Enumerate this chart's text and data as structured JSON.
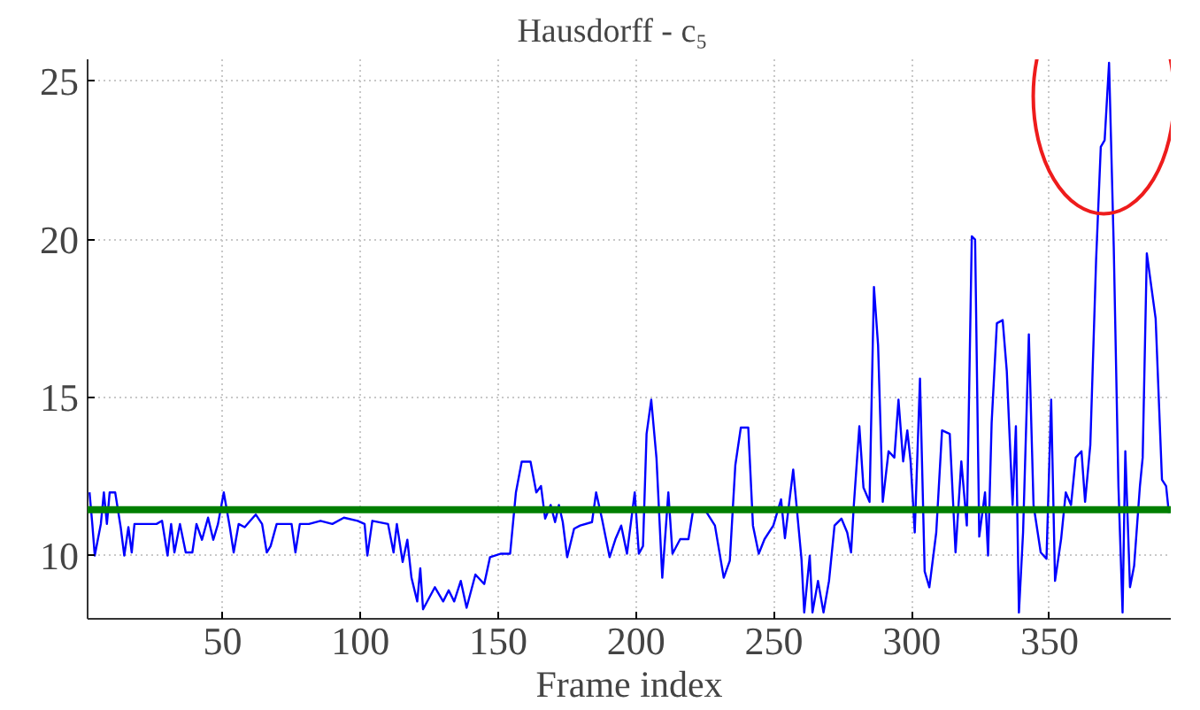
{
  "chart_data": {
    "type": "line",
    "title": "Hausdorff   -   c₅",
    "xlabel": "Frame index",
    "x": [
      1.7,
      2.7,
      3.6,
      5.8,
      6.9,
      8,
      9,
      11,
      13,
      14.3,
      15.8,
      17,
      18,
      26,
      28,
      30,
      31.3,
      32.5,
      34.5,
      36.6,
      39,
      40.5,
      42.5,
      44.7,
      46.6,
      48.3,
      50.4,
      52.6,
      54,
      55.8,
      58,
      60,
      62,
      64.3,
      66,
      67.4,
      69.6,
      75,
      76.4,
      78,
      81.3,
      85.5,
      89.8,
      94,
      99,
      101.5,
      102.5,
      104.3,
      110,
      112,
      113.2,
      115.3,
      117,
      118.5,
      120.6,
      121.7,
      122.7,
      127,
      130,
      132,
      134,
      136.4,
      138.5,
      141.7,
      144.9,
      147,
      151,
      154.3,
      156.4,
      158.5,
      161.7,
      163.8,
      165.5,
      167,
      169,
      170.6,
      172,
      173.4,
      175,
      177.5,
      179.7,
      184,
      185.5,
      187.6,
      190.4,
      192.5,
      194.6,
      196.7,
      199.5,
      201,
      202.5,
      203.8,
      205.5,
      207.4,
      209.5,
      211.7,
      213.2,
      216,
      219,
      220.8,
      225.5,
      228.6,
      231.8,
      234,
      236,
      238,
      240.7,
      242.4,
      244.5,
      246.6,
      249.8,
      252.6,
      254,
      257,
      260,
      261,
      263,
      264,
      266,
      268,
      270,
      272,
      274.5,
      276.6,
      278,
      279,
      281,
      282.5,
      284.7,
      286.3,
      287.8,
      289.5,
      291.6,
      293.7,
      295.2,
      296.9,
      298.4,
      299.6,
      301.1,
      303,
      304.7,
      306.4,
      308.9,
      311,
      313.8,
      315.9,
      318,
      320,
      321.8,
      323,
      324.5,
      326.6,
      327.7,
      329,
      330.9,
      333,
      334.5,
      336.6,
      337.8,
      338.9,
      340.4,
      342.5,
      344.2,
      346.8,
      348.9,
      350.6,
      352,
      354.2,
      355.9,
      357.8,
      359.5,
      361.6,
      362.9,
      364.8,
      366.9,
      368.6,
      370,
      371.6,
      373.3,
      375,
      376.5,
      377.5,
      379.2,
      380.7,
      382.8,
      383.8,
      385.3,
      388.5,
      390.8,
      392.3,
      393.3
    ],
    "series": [
      {
        "color": "#0000ff",
        "values": [
          12,
          11,
          10,
          11,
          12,
          11,
          12,
          12,
          10.9,
          10,
          10.9,
          10.1,
          11,
          11,
          11.1,
          10,
          11,
          10.1,
          11,
          10.1,
          10.1,
          11,
          10.5,
          11.2,
          10.5,
          11,
          12,
          10.9,
          10.1,
          11,
          10.9,
          11.1,
          11.3,
          11,
          10.1,
          10.3,
          11,
          11,
          10.1,
          11,
          11,
          11.1,
          11,
          11.2,
          11.1,
          11,
          10,
          11.1,
          11,
          10.1,
          11,
          9.8,
          10.5,
          9.3,
          8.55,
          9.6,
          8.3,
          9,
          8.55,
          8.9,
          8.55,
          9.2,
          8.35,
          9.4,
          9.1,
          9.95,
          10.06,
          10.06,
          12,
          12.97,
          12.97,
          12,
          12.2,
          11.17,
          11.6,
          11.06,
          11.6,
          11.06,
          9.95,
          10.85,
          10.95,
          11.06,
          12,
          11.17,
          9.95,
          10.52,
          10.95,
          10.06,
          12,
          10.06,
          10.3,
          13.85,
          14.93,
          13.08,
          9.3,
          12,
          10.06,
          10.52,
          10.52,
          11.5,
          11.38,
          10.95,
          9.3,
          9.84,
          12.86,
          14.05,
          14.05,
          10.95,
          10.06,
          10.52,
          10.95,
          11.78,
          10.55,
          12.72,
          9.9,
          8.2,
          10,
          8.2,
          9.2,
          8.2,
          9.2,
          10.95,
          11.17,
          10.73,
          10.1,
          11.6,
          14.09,
          12.15,
          11.7,
          18.5,
          16.65,
          11.7,
          13.3,
          13.1,
          14.93,
          12.98,
          13.96,
          12.98,
          10.73,
          15.6,
          9.5,
          9,
          10.73,
          13.96,
          13.85,
          10.1,
          12.98,
          10.95,
          20.1,
          20,
          10.6,
          12,
          10,
          14.2,
          17.35,
          17.45,
          15.83,
          11.6,
          14.09,
          8.2,
          10.73,
          17,
          11.6,
          10.1,
          9.9,
          14.93,
          9.2,
          10.52,
          12,
          11.6,
          13.1,
          13.3,
          11.7,
          13.5,
          19.35,
          22.93,
          23.14,
          25.59,
          19.78,
          12.2,
          8.2,
          13.3,
          9,
          9.68,
          12.2,
          13.1,
          19.56,
          17.5,
          12.4,
          12.2,
          11.35
        ]
      }
    ],
    "xlim": [
      1,
      394
    ],
    "ylim": [
      8,
      25.7
    ],
    "xticks": [
      50,
      100,
      150,
      200,
      250,
      300,
      350
    ],
    "yticks": [
      10,
      15,
      20,
      25
    ],
    "ref_lines": [
      {
        "axis": "y",
        "value": 11.45,
        "color": "#007f00"
      }
    ],
    "grid": true,
    "line_style": "solid",
    "marker": "none"
  }
}
